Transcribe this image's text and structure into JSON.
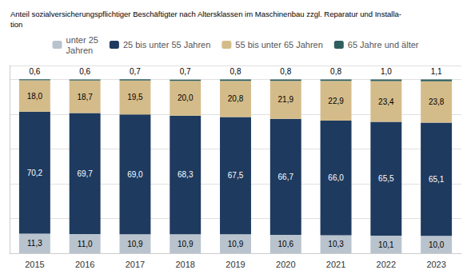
{
  "chart_data": {
    "type": "bar",
    "title": "Anteil sozialversicherungspflichtiger Beschäftigter nach Altersklassen im Maschinenbau zzgl. Reparatur und Installa-\ntion",
    "categories": [
      "2015",
      "2016",
      "2017",
      "2018",
      "2019",
      "2020",
      "2021",
      "2022",
      "2023"
    ],
    "series": [
      {
        "name": "unter 25\nJahren",
        "color": "#b8c3ce",
        "values": [
          11.3,
          11.0,
          10.9,
          10.9,
          10.9,
          10.6,
          10.3,
          10.1,
          10.0
        ],
        "value_labels": [
          "11,3",
          "11,0",
          "10,9",
          "10,9",
          "10,9",
          "10,6",
          "10,3",
          "10,1",
          "10,0"
        ]
      },
      {
        "name": "25 bis unter 55 Jahren",
        "color": "#1e3a5f",
        "values": [
          70.2,
          69.7,
          69.0,
          68.3,
          67.5,
          66.7,
          66.0,
          65.5,
          65.1
        ],
        "value_labels": [
          "70,2",
          "69,7",
          "69,0",
          "68,3",
          "67,5",
          "66,7",
          "66,0",
          "65,5",
          "65,1"
        ]
      },
      {
        "name": "55 bis unter 65 Jahren",
        "color": "#d4bc8a",
        "values": [
          18.0,
          18.7,
          19.5,
          20.0,
          20.8,
          21.9,
          22.9,
          23.4,
          23.8
        ],
        "value_labels": [
          "18,0",
          "18,7",
          "19,5",
          "20,0",
          "20,8",
          "21,9",
          "22,9",
          "23,4",
          "23,8"
        ]
      },
      {
        "name": "65 Jahre und älter",
        "color": "#2e5f5e",
        "values": [
          0.6,
          0.6,
          0.7,
          0.7,
          0.8,
          0.8,
          0.8,
          1.0,
          1.1
        ],
        "value_labels": [
          "0,6",
          "0,6",
          "0,7",
          "0,7",
          "0,8",
          "0,8",
          "0,8",
          "1,0",
          "1,1"
        ]
      }
    ],
    "stacked": true,
    "data_labels": true,
    "ylim": [
      0,
      108
    ],
    "yticks": [
      0,
      20,
      40,
      60,
      80,
      100
    ],
    "grid": true,
    "legend": "top",
    "tick_labels": "x"
  }
}
